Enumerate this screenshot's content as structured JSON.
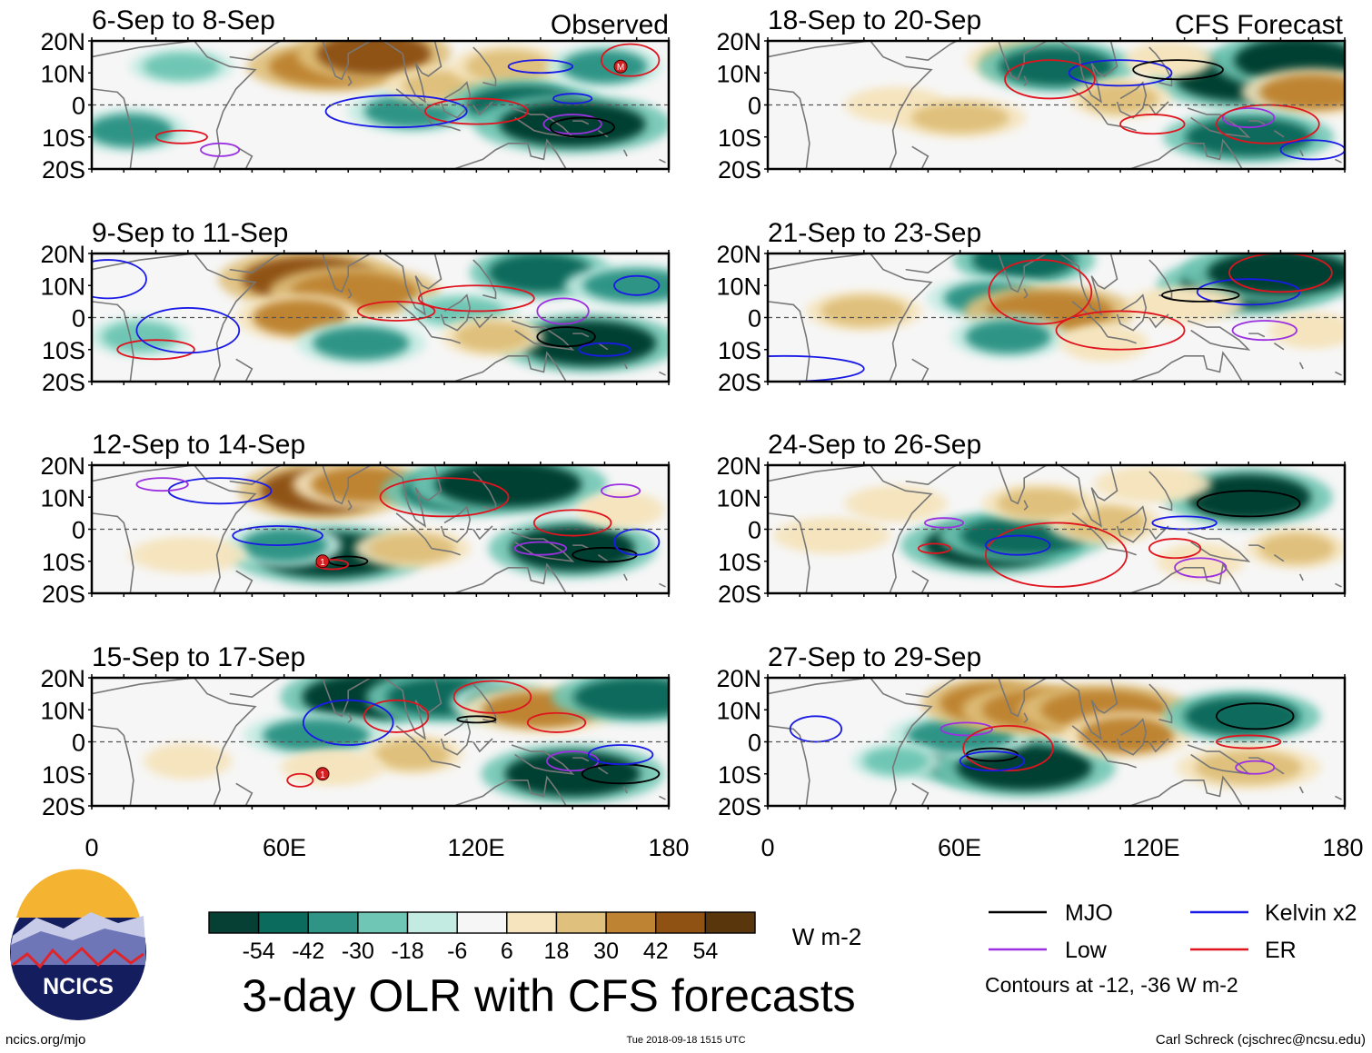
{
  "figure": {
    "title": "3-day OLR with CFS forecasts",
    "units": "W m-2",
    "left_column_label": "Observed",
    "right_column_label": "CFS Forecast",
    "site": "ncics.org/mjo",
    "timestamp": "Tue 2018-09-18 1515 UTC",
    "author": "Carl Schreck (cjschrec@ncsu.edu)",
    "logo_text": "NCICS"
  },
  "axes": {
    "lat_labels": [
      "20N",
      "10N",
      "0",
      "10S",
      "20S"
    ],
    "lon_labels": [
      "0",
      "60E",
      "120E",
      "180"
    ]
  },
  "panels": [
    {
      "id": "obs-1",
      "title": "6-Sep to 8-Sep",
      "type": "observed"
    },
    {
      "id": "obs-2",
      "title": "9-Sep to 11-Sep",
      "type": "observed"
    },
    {
      "id": "obs-3",
      "title": "12-Sep to 14-Sep",
      "type": "observed"
    },
    {
      "id": "obs-4",
      "title": "15-Sep to 17-Sep",
      "type": "observed"
    },
    {
      "id": "fc-1",
      "title": "18-Sep to 20-Sep",
      "type": "forecast"
    },
    {
      "id": "fc-2",
      "title": "21-Sep to 23-Sep",
      "type": "forecast"
    },
    {
      "id": "fc-3",
      "title": "24-Sep to 26-Sep",
      "type": "forecast"
    },
    {
      "id": "fc-4",
      "title": "27-Sep to 29-Sep",
      "type": "forecast"
    }
  ],
  "colorbar": {
    "tick_labels": [
      "-54",
      "-42",
      "-30",
      "-18",
      "-6",
      "6",
      "18",
      "30",
      "42",
      "54"
    ],
    "colors": [
      "#063f33",
      "#0b6b5c",
      "#2f9486",
      "#6fc6b4",
      "#c4ebe2",
      "#f6f6f6",
      "#f5e4bd",
      "#dfc07c",
      "#be8433",
      "#8f5213",
      "#5a360d"
    ]
  },
  "legend": {
    "items": [
      {
        "label": "MJO",
        "color": "#000000"
      },
      {
        "label": "Kelvin x2",
        "color": "#1a1ae6"
      },
      {
        "label": "Low",
        "color": "#9b30e0"
      },
      {
        "label": "ER",
        "color": "#e0141e"
      }
    ],
    "note": "Contours at -12, -36 W m-2"
  },
  "storm_markers": [
    {
      "panel": "obs-1",
      "label": "M"
    },
    {
      "panel": "obs-3",
      "label": "1"
    },
    {
      "panel": "obs-4",
      "label": "1"
    }
  ],
  "chart_data": {
    "type": "heatmap",
    "title": "3-day OLR with CFS forecasts",
    "variable": "OLR anomaly",
    "units": "W m-2",
    "lon_range": [
      0,
      180
    ],
    "lat_range": [
      -20,
      20
    ],
    "levels": [
      -54,
      -42,
      -30,
      -18,
      -6,
      6,
      18,
      30,
      42,
      54
    ],
    "contours": [
      -12,
      -36
    ],
    "panel_values": [
      {
        "panel": "6-Sep to 8-Sep",
        "blobs": [
          {
            "lon": 12,
            "lat": -8,
            "v": -30
          },
          {
            "lon": 28,
            "lat": 12,
            "v": -18
          },
          {
            "lon": 75,
            "lat": 12,
            "v": 42
          },
          {
            "lon": 88,
            "lat": 16,
            "v": 48
          },
          {
            "lon": 100,
            "lat": -2,
            "v": -30
          },
          {
            "lon": 112,
            "lat": 6,
            "v": 24
          },
          {
            "lon": 130,
            "lat": 12,
            "v": 30
          },
          {
            "lon": 135,
            "lat": 0,
            "v": -42
          },
          {
            "lon": 150,
            "lat": -6,
            "v": -54
          },
          {
            "lon": 160,
            "lat": 12,
            "v": -30
          }
        ]
      },
      {
        "panel": "9-Sep to 11-Sep",
        "blobs": [
          {
            "lon": 15,
            "lat": -6,
            "v": -24
          },
          {
            "lon": 68,
            "lat": 12,
            "v": 54
          },
          {
            "lon": 82,
            "lat": 8,
            "v": 42
          },
          {
            "lon": 65,
            "lat": 0,
            "v": 36
          },
          {
            "lon": 84,
            "lat": -8,
            "v": -30
          },
          {
            "lon": 115,
            "lat": 2,
            "v": -18
          },
          {
            "lon": 140,
            "lat": 14,
            "v": -42
          },
          {
            "lon": 155,
            "lat": -8,
            "v": -54
          },
          {
            "lon": 170,
            "lat": 10,
            "v": -30
          },
          {
            "lon": 125,
            "lat": -6,
            "v": 24
          }
        ]
      },
      {
        "panel": "12-Sep to 14-Sep",
        "blobs": [
          {
            "lon": 72,
            "lat": 12,
            "v": 54
          },
          {
            "lon": 85,
            "lat": 14,
            "v": 36
          },
          {
            "lon": 74,
            "lat": -8,
            "v": -54
          },
          {
            "lon": 60,
            "lat": -5,
            "v": -30
          },
          {
            "lon": 115,
            "lat": 12,
            "v": -42
          },
          {
            "lon": 130,
            "lat": 14,
            "v": -54
          },
          {
            "lon": 150,
            "lat": -6,
            "v": -54
          },
          {
            "lon": 100,
            "lat": -6,
            "v": 24
          },
          {
            "lon": 30,
            "lat": -8,
            "v": 18
          },
          {
            "lon": 165,
            "lat": 6,
            "v": 18
          }
        ]
      },
      {
        "panel": "15-Sep to 17-Sep",
        "blobs": [
          {
            "lon": 85,
            "lat": 14,
            "v": -54
          },
          {
            "lon": 110,
            "lat": 14,
            "v": -42
          },
          {
            "lon": 70,
            "lat": 2,
            "v": -30
          },
          {
            "lon": 130,
            "lat": 12,
            "v": -30
          },
          {
            "lon": 150,
            "lat": -10,
            "v": -54
          },
          {
            "lon": 140,
            "lat": 10,
            "v": 36
          },
          {
            "lon": 100,
            "lat": -4,
            "v": 24
          },
          {
            "lon": 75,
            "lat": -8,
            "v": 18
          },
          {
            "lon": 170,
            "lat": 14,
            "v": -42
          },
          {
            "lon": 30,
            "lat": -6,
            "v": 18
          }
        ]
      },
      {
        "panel": "18-Sep to 20-Sep",
        "blobs": [
          {
            "lon": 80,
            "lat": 14,
            "v": 30
          },
          {
            "lon": 90,
            "lat": 12,
            "v": -42
          },
          {
            "lon": 150,
            "lat": 8,
            "v": -54
          },
          {
            "lon": 165,
            "lat": 14,
            "v": -54
          },
          {
            "lon": 170,
            "lat": 4,
            "v": 36
          },
          {
            "lon": 150,
            "lat": -10,
            "v": -42
          },
          {
            "lon": 110,
            "lat": 2,
            "v": 24
          },
          {
            "lon": 40,
            "lat": 0,
            "v": 18
          },
          {
            "lon": 60,
            "lat": -4,
            "v": 24
          },
          {
            "lon": 125,
            "lat": 14,
            "v": 18
          }
        ]
      },
      {
        "panel": "21-Sep to 23-Sep",
        "blobs": [
          {
            "lon": 80,
            "lat": 18,
            "v": -42
          },
          {
            "lon": 70,
            "lat": 6,
            "v": -30
          },
          {
            "lon": 88,
            "lat": 2,
            "v": 42
          },
          {
            "lon": 75,
            "lat": -6,
            "v": -30
          },
          {
            "lon": 150,
            "lat": 10,
            "v": -54
          },
          {
            "lon": 160,
            "lat": 14,
            "v": -54
          },
          {
            "lon": 105,
            "lat": -8,
            "v": 18
          },
          {
            "lon": 30,
            "lat": 2,
            "v": 24
          },
          {
            "lon": 130,
            "lat": 4,
            "v": 18
          },
          {
            "lon": 170,
            "lat": -4,
            "v": 18
          }
        ]
      },
      {
        "panel": "24-Sep to 26-Sep",
        "blobs": [
          {
            "lon": 150,
            "lat": 10,
            "v": -54
          },
          {
            "lon": 70,
            "lat": -5,
            "v": -54
          },
          {
            "lon": 80,
            "lat": -2,
            "v": -42
          },
          {
            "lon": 105,
            "lat": 2,
            "v": 30
          },
          {
            "lon": 85,
            "lat": 8,
            "v": 24
          },
          {
            "lon": 120,
            "lat": 14,
            "v": 18
          },
          {
            "lon": 165,
            "lat": -6,
            "v": 24
          },
          {
            "lon": 40,
            "lat": 8,
            "v": 18
          },
          {
            "lon": 20,
            "lat": -2,
            "v": 18
          },
          {
            "lon": 135,
            "lat": -10,
            "v": 18
          }
        ]
      },
      {
        "panel": "27-Sep to 29-Sep",
        "blobs": [
          {
            "lon": 68,
            "lat": -5,
            "v": -54
          },
          {
            "lon": 80,
            "lat": -8,
            "v": -54
          },
          {
            "lon": 60,
            "lat": 2,
            "v": -30
          },
          {
            "lon": 70,
            "lat": 12,
            "v": 42
          },
          {
            "lon": 85,
            "lat": 10,
            "v": 42
          },
          {
            "lon": 105,
            "lat": 10,
            "v": 42
          },
          {
            "lon": 112,
            "lat": 2,
            "v": 36
          },
          {
            "lon": 148,
            "lat": 8,
            "v": -42
          },
          {
            "lon": 150,
            "lat": -8,
            "v": 30
          },
          {
            "lon": 40,
            "lat": -6,
            "v": -18
          }
        ]
      }
    ]
  }
}
